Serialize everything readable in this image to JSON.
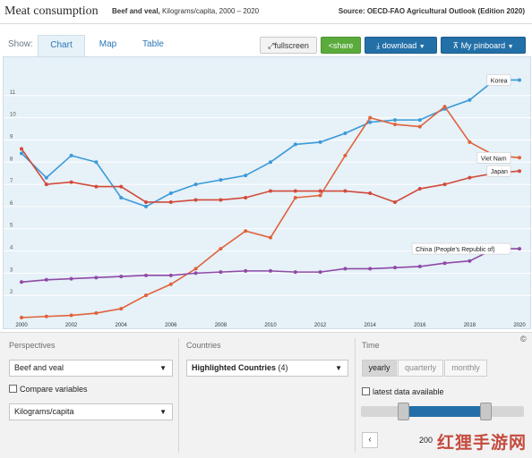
{
  "header": {
    "title": "Meat consumption",
    "subtitle_bold": "Beef and veal,",
    "subtitle_rest": "Kilograms/capita, 2000 – 2020",
    "source": "Source: OECD-FAO Agricultural Outlook (Edition 2020)"
  },
  "toolbar": {
    "show_label": "Show:",
    "tabs": [
      "Chart",
      "Map",
      "Table"
    ],
    "active_tab": "Chart",
    "fullscreen_label": "fullscreen",
    "share_label": "share",
    "download_label": "download",
    "pinboard_label": "My pinboard"
  },
  "icons": {
    "fullscreen": "expand-icon",
    "share": "share-icon",
    "download": "download-icon",
    "pinboard": "pin-icon",
    "dropdown": "caret-down-icon"
  },
  "colors": {
    "korea": "#3a9ad9",
    "viet_nam": "#e0623a",
    "japan": "#d24a3a",
    "china": "#8e4aa6",
    "plot_bg": "#e6f1f8",
    "accent": "#2370a8",
    "share_green": "#5aab3c"
  },
  "chart_data": {
    "type": "line",
    "x": [
      2000,
      2001,
      2002,
      2003,
      2004,
      2005,
      2006,
      2007,
      2008,
      2009,
      2010,
      2011,
      2012,
      2013,
      2014,
      2015,
      2016,
      2017,
      2018,
      2019,
      2020
    ],
    "xticks": [
      "2000",
      "2002",
      "2004",
      "2006",
      "2008",
      "2010",
      "2012",
      "2014",
      "2016",
      "2018",
      "2020"
    ],
    "yticks": [
      "2",
      "3",
      "4",
      "5",
      "6",
      "7",
      "8",
      "9",
      "10",
      "11"
    ],
    "ylim": [
      1,
      12
    ],
    "grid": "horizontal",
    "series": [
      {
        "name": "Korea",
        "color_key": "korea",
        "values": [
          8.4,
          7.3,
          8.3,
          8.0,
          6.4,
          6.0,
          6.6,
          7.0,
          7.2,
          7.4,
          8.0,
          8.8,
          8.9,
          9.3,
          9.8,
          9.9,
          9.9,
          10.4,
          10.8,
          11.7,
          11.7
        ]
      },
      {
        "name": "Viet Nam",
        "color_key": "viet_nam",
        "values": [
          1.0,
          1.05,
          1.1,
          1.2,
          1.4,
          2.0,
          2.5,
          3.2,
          4.1,
          4.9,
          4.6,
          6.4,
          6.5,
          8.3,
          10.0,
          9.7,
          9.6,
          10.5,
          8.9,
          8.3,
          8.2
        ]
      },
      {
        "name": "Japan",
        "color_key": "japan",
        "values": [
          8.6,
          7.0,
          7.1,
          6.9,
          6.9,
          6.2,
          6.2,
          6.3,
          6.3,
          6.4,
          6.7,
          6.7,
          6.7,
          6.7,
          6.6,
          6.2,
          6.8,
          7.0,
          7.3,
          7.5,
          7.6
        ]
      },
      {
        "name": "China (People's Republic of)",
        "color_key": "china",
        "values": [
          2.6,
          2.7,
          2.75,
          2.8,
          2.85,
          2.9,
          2.9,
          3.0,
          3.05,
          3.1,
          3.1,
          3.05,
          3.05,
          3.2,
          3.2,
          3.25,
          3.3,
          3.45,
          3.55,
          4.1,
          4.1
        ]
      }
    ]
  },
  "controls": {
    "perspectives_heading": "Perspectives",
    "perspective_value": "Beef and veal",
    "compare_label": "Compare variables",
    "unit_value": "Kilograms/capita",
    "countries_heading": "Countries",
    "countries_value": "Highlighted Countries",
    "countries_count": "(4)",
    "time_heading": "Time",
    "time_options": [
      "yearly",
      "quarterly",
      "monthly"
    ],
    "time_active": "yearly",
    "latest_label": "latest data available",
    "year_fragment": "200",
    "copyright": "©",
    "watermark": "红狸手游网"
  }
}
